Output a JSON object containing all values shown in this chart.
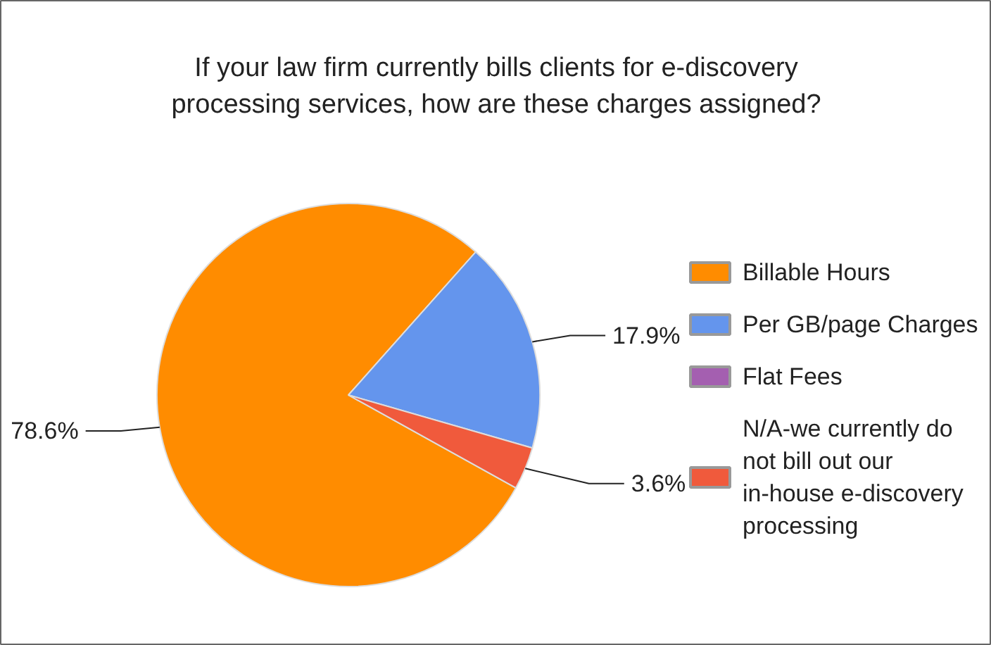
{
  "chart_data": {
    "type": "pie",
    "title": "If your law firm currently bills clients for e-discovery processing services, how are these charges assigned?",
    "categories": [
      "Billable Hours",
      "Per GB/page Charges",
      "Flat Fees",
      "N/A-we currently do not bill out our in-house e-discovery processing"
    ],
    "values": [
      78.6,
      17.9,
      0,
      3.6
    ],
    "colors": [
      "#ff8c00",
      "#6495ed",
      "#a45fb0",
      "#f05a3c"
    ],
    "value_labels": [
      "78.6%",
      "17.9%",
      null,
      "3.6%"
    ],
    "legend": "right"
  }
}
